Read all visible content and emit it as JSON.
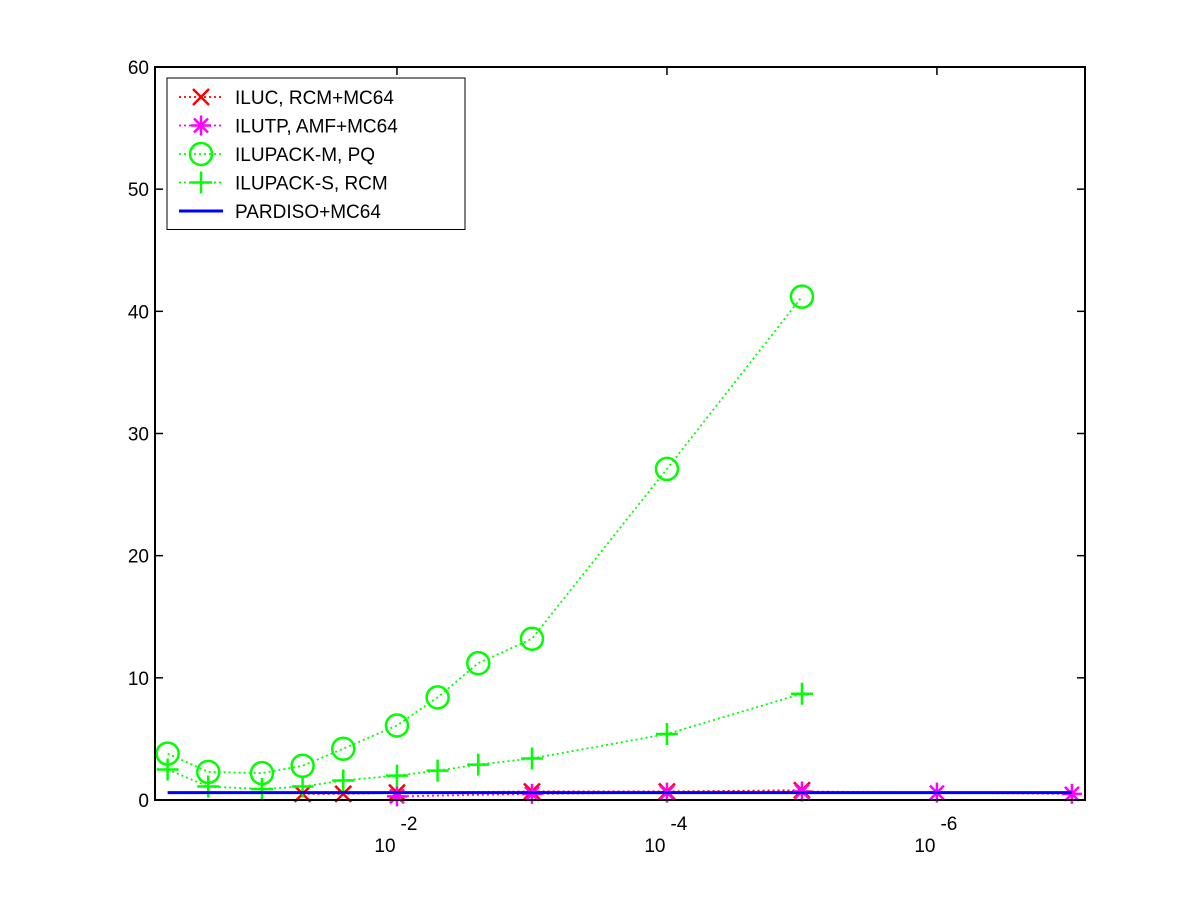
{
  "chart_data": {
    "type": "line",
    "xscale": "log",
    "xlim": [
      0.62,
      8e-08
    ],
    "xticks": [
      {
        "value": 0.01,
        "label": "10",
        "exponent": "-2"
      },
      {
        "value": 0.0001,
        "label": "10",
        "exponent": "-4"
      },
      {
        "value": 1e-06,
        "label": "10",
        "exponent": "-6"
      }
    ],
    "ylim": [
      0,
      60
    ],
    "yticks": [
      0,
      10,
      20,
      30,
      40,
      50,
      60
    ],
    "grid": false,
    "legend": "upper-left",
    "series": [
      {
        "name": "ILUC, RCM+MC64",
        "color": "#ff0000",
        "marker": "x",
        "linestyle": "dotted",
        "x": [
          0.05,
          0.025,
          0.01,
          0.001,
          0.0001,
          1e-05
        ],
        "values": [
          0.5,
          0.5,
          0.6,
          0.7,
          0.7,
          0.8
        ]
      },
      {
        "name": "ILUTP, AMF+MC64",
        "color": "#ff00ff",
        "marker": "star",
        "linestyle": "dotted",
        "x": [
          0.01,
          0.001,
          0.0001,
          1e-05,
          1e-06,
          1e-07
        ],
        "values": [
          0.3,
          0.5,
          0.6,
          0.7,
          0.6,
          0.5
        ]
      },
      {
        "name": "ILUPACK-M, PQ",
        "color": "#00ff00",
        "marker": "circle",
        "linestyle": "dotted",
        "x": [
          0.5,
          0.25,
          0.1,
          0.05,
          0.025,
          0.01,
          0.005,
          0.0025,
          0.001,
          0.0001,
          1e-05
        ],
        "values": [
          3.8,
          2.3,
          2.2,
          2.8,
          4.2,
          6.1,
          8.4,
          11.2,
          13.2,
          27.1,
          41.2
        ]
      },
      {
        "name": "ILUPACK-S, RCM",
        "color": "#00ff00",
        "marker": "plus",
        "linestyle": "dotted",
        "x": [
          0.5,
          0.25,
          0.1,
          0.05,
          0.025,
          0.01,
          0.005,
          0.0025,
          0.001,
          0.0001,
          1e-05
        ],
        "values": [
          2.5,
          1.1,
          0.9,
          1.1,
          1.6,
          2.0,
          2.4,
          2.9,
          3.4,
          5.4,
          8.7
        ]
      },
      {
        "name": "PARDISO+MC64",
        "color": "#0000ff",
        "marker": "none",
        "linestyle": "solid",
        "x": [
          0.5,
          1e-07
        ],
        "values": [
          0.6,
          0.6
        ]
      }
    ]
  }
}
